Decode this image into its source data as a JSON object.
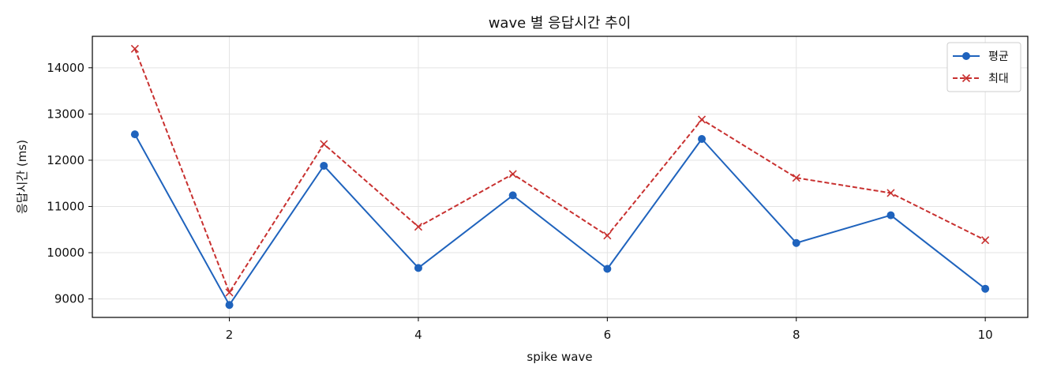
{
  "chart_data": {
    "type": "line",
    "title": "wave 별 응답시간 추이",
    "xlabel": "spike wave",
    "ylabel": "응답시간 (ms)",
    "x": [
      1,
      2,
      3,
      4,
      5,
      6,
      7,
      8,
      9,
      10
    ],
    "xlim": [
      0.55,
      10.45
    ],
    "ylim": [
      8600,
      14680
    ],
    "xticks": [
      2,
      4,
      6,
      8,
      10
    ],
    "yticks": [
      9000,
      10000,
      11000,
      12000,
      13000,
      14000
    ],
    "grid": true,
    "legend_position": "top-right",
    "series": [
      {
        "name": "평균",
        "color": "#1f63bd",
        "marker": "circle",
        "line_style": "solid",
        "values": [
          12560,
          8870,
          11880,
          9670,
          11240,
          9650,
          12460,
          10210,
          10810,
          9220
        ]
      },
      {
        "name": "최대",
        "color": "#c8302f",
        "marker": "x",
        "line_style": "dashed",
        "values": [
          14410,
          9140,
          12350,
          10560,
          11700,
          10370,
          12880,
          11620,
          11290,
          10270
        ]
      }
    ]
  }
}
